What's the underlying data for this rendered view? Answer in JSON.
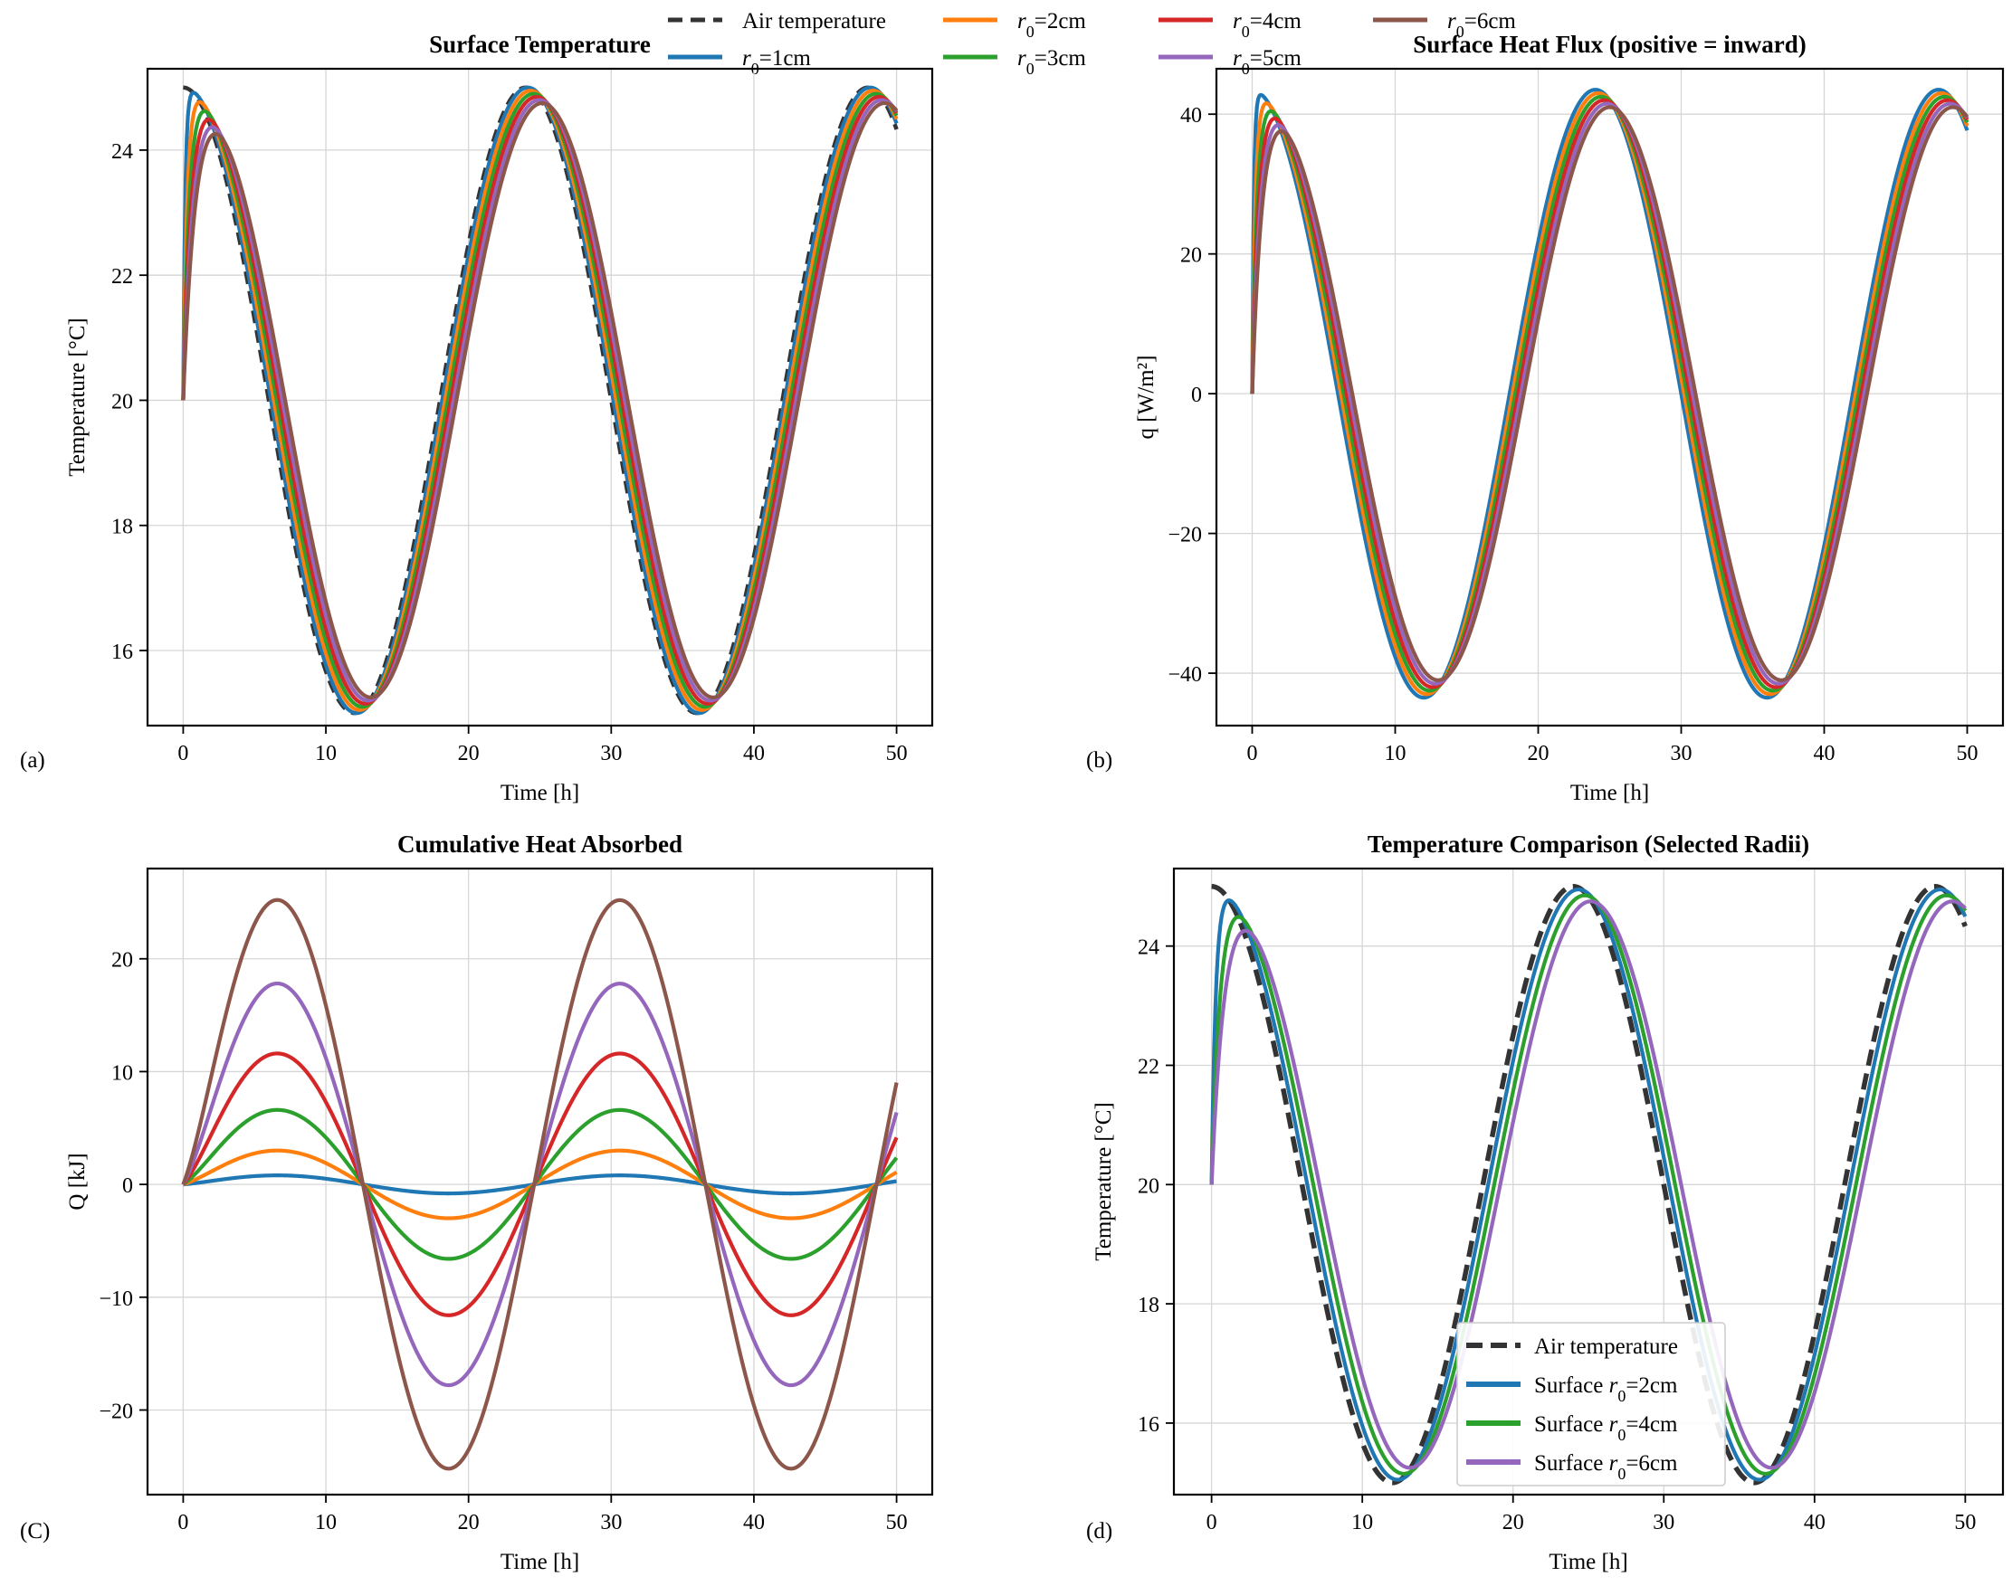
{
  "colors": {
    "air": "#333333",
    "r1": "#1f77b4",
    "r2": "#ff7f0e",
    "r3": "#2ca02c",
    "r4": "#d62728",
    "r5": "#9467bd",
    "r6": "#8c564b"
  },
  "legend": {
    "entries": [
      {
        "key": "air",
        "label": "Air temperature",
        "dashed": true
      },
      {
        "key": "r1",
        "label": "=1cm",
        "math": "r",
        "sub": "0"
      },
      {
        "key": "r2",
        "label": "=2cm",
        "math": "r",
        "sub": "0"
      },
      {
        "key": "r3",
        "label": "=3cm",
        "math": "r",
        "sub": "0"
      },
      {
        "key": "r4",
        "label": "=4cm",
        "math": "r",
        "sub": "0"
      },
      {
        "key": "r5",
        "label": "=5cm",
        "math": "r",
        "sub": "0"
      },
      {
        "key": "r6",
        "label": "=6cm",
        "math": "r",
        "sub": "0"
      }
    ]
  },
  "chart_data": [
    {
      "panel": "(a)",
      "type": "line",
      "title": "Surface Temperature",
      "xlabel": "Time [h]",
      "ylabel": "Temperature [°C]",
      "xlim": [
        -2.5,
        52.5
      ],
      "ylim": [
        14.8,
        25.3
      ],
      "xticks": [
        0,
        10,
        20,
        30,
        40,
        50
      ],
      "yticks": [
        16,
        18,
        20,
        22,
        24
      ],
      "ytick_labels": [
        "16",
        "18",
        "20",
        "22",
        "24"
      ],
      "grid": true,
      "model": {
        "kind": "temperature",
        "t_end": 50,
        "period_h": 24,
        "mean": 20,
        "amplitude": 5,
        "initial": 20
      },
      "series": [
        {
          "name": "Air temperature",
          "key": "air",
          "dashed": true
        },
        {
          "name": "r0=1cm",
          "key": "r1",
          "tau": 0.25,
          "lag": 0.15,
          "damp": 1.0,
          "peak_first": 24.85
        },
        {
          "name": "r0=2cm",
          "key": "r2",
          "tau": 0.5,
          "lag": 0.35,
          "damp": 0.99,
          "peak_first": 24.65
        },
        {
          "name": "r0=3cm",
          "key": "r3",
          "tau": 0.75,
          "lag": 0.55,
          "damp": 0.98,
          "peak_first": 24.45
        },
        {
          "name": "r0=4cm",
          "key": "r4",
          "tau": 1.0,
          "lag": 0.75,
          "damp": 0.97,
          "peak_first": 24.2
        },
        {
          "name": "r0=5cm",
          "key": "r5",
          "tau": 1.25,
          "lag": 0.95,
          "damp": 0.96,
          "peak_first": 24.0
        },
        {
          "name": "r0=6cm",
          "key": "r6",
          "tau": 1.5,
          "lag": 1.15,
          "damp": 0.95,
          "peak_first": 23.8
        }
      ]
    },
    {
      "panel": "(b)",
      "type": "line",
      "title": "Surface Heat Flux (positive = inward)",
      "xlabel": "Time [h]",
      "ylabel": "q [W/m²]",
      "xlim": [
        -2.5,
        52.5
      ],
      "ylim": [
        -47.5,
        46.5
      ],
      "xticks": [
        0,
        10,
        20,
        30,
        40,
        50
      ],
      "yticks": [
        -40,
        -20,
        0,
        20,
        40
      ],
      "ytick_labels": [
        "−40",
        "−20",
        "0",
        "20",
        "40"
      ],
      "grid": true,
      "model": {
        "kind": "flux",
        "t_end": 50,
        "period_h": 24
      },
      "series": [
        {
          "name": "r0=1cm",
          "key": "r1",
          "amplitude": 43.5,
          "lag": 0.0,
          "tau": 0.25,
          "peak_first": 42.5
        },
        {
          "name": "r0=2cm",
          "key": "r2",
          "amplitude": 43.0,
          "lag": 0.2,
          "tau": 0.5,
          "peak_first": 40.5
        },
        {
          "name": "r0=3cm",
          "key": "r3",
          "amplitude": 42.5,
          "lag": 0.4,
          "tau": 0.75,
          "peak_first": 38.5
        },
        {
          "name": "r0=4cm",
          "key": "r4",
          "amplitude": 42.0,
          "lag": 0.6,
          "tau": 1.0,
          "peak_first": 36.8
        },
        {
          "name": "r0=5cm",
          "key": "r5",
          "amplitude": 41.5,
          "lag": 0.8,
          "tau": 1.25,
          "peak_first": 35.0
        },
        {
          "name": "r0=6cm",
          "key": "r6",
          "amplitude": 41.0,
          "lag": 1.0,
          "tau": 1.5,
          "peak_first": 33.2
        }
      ]
    },
    {
      "panel": "(C)",
      "type": "line",
      "title": "Cumulative Heat Absorbed",
      "xlabel": "Time [h]",
      "ylabel": "Q [kJ]",
      "xlim": [
        -2.5,
        52.5
      ],
      "ylim": [
        -27.5,
        28
      ],
      "xticks": [
        0,
        10,
        20,
        30,
        40,
        50
      ],
      "yticks": [
        -20,
        -10,
        0,
        10,
        20
      ],
      "ytick_labels": [
        "−20",
        "−10",
        "0",
        "10",
        "20"
      ],
      "grid": true,
      "model": {
        "kind": "cumulative",
        "t_end": 50,
        "period_h": 24
      },
      "series": [
        {
          "name": "r0=1cm",
          "key": "r1",
          "amplitude": 0.8
        },
        {
          "name": "r0=2cm",
          "key": "r2",
          "amplitude": 3.0
        },
        {
          "name": "r0=3cm",
          "key": "r3",
          "amplitude": 6.6
        },
        {
          "name": "r0=4cm",
          "key": "r4",
          "amplitude": 11.6
        },
        {
          "name": "r0=5cm",
          "key": "r5",
          "amplitude": 17.8
        },
        {
          "name": "r0=6cm",
          "key": "r6",
          "amplitude": 25.2
        }
      ]
    },
    {
      "panel": "(d)",
      "type": "line",
      "title": "Temperature Comparison (Selected Radii)",
      "xlabel": "Time [h]",
      "ylabel": "Temperature [°C]",
      "xlim": [
        -2.5,
        52.5
      ],
      "ylim": [
        14.8,
        25.3
      ],
      "xticks": [
        0,
        10,
        20,
        30,
        40,
        50
      ],
      "yticks": [
        16,
        18,
        20,
        22,
        24
      ],
      "ytick_labels": [
        "16",
        "18",
        "20",
        "22",
        "24"
      ],
      "grid": true,
      "legend_position": "lower-center",
      "model": {
        "kind": "temperature",
        "t_end": 50,
        "period_h": 24,
        "mean": 20,
        "amplitude": 5,
        "initial": 20
      },
      "series": [
        {
          "name": "Air temperature",
          "key": "air",
          "dashed": true,
          "thick": true
        },
        {
          "name": "Surface r0=2cm",
          "key": "r1",
          "tau": 0.5,
          "lag": 0.35,
          "damp": 0.99,
          "peak_first": 24.65
        },
        {
          "name": "Surface r0=4cm",
          "key": "r3",
          "tau": 1.0,
          "lag": 0.75,
          "damp": 0.97,
          "peak_first": 24.2
        },
        {
          "name": "Surface r0=6cm",
          "key": "r5",
          "tau": 1.5,
          "lag": 1.15,
          "damp": 0.95,
          "peak_first": 23.8
        }
      ],
      "legend": [
        {
          "key": "air",
          "label": "Air temperature",
          "dashed": true
        },
        {
          "key": "r1",
          "label": "Surface ",
          "math": "r",
          "sub": "0",
          "suffix": "=2cm"
        },
        {
          "key": "r3",
          "label": "Surface ",
          "math": "r",
          "sub": "0",
          "suffix": "=4cm"
        },
        {
          "key": "r5",
          "label": "Surface ",
          "math": "r",
          "sub": "0",
          "suffix": "=6cm"
        }
      ]
    }
  ]
}
